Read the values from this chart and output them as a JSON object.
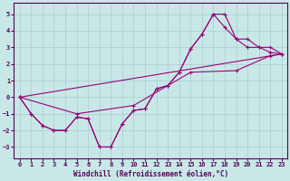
{
  "xlabel": "Windchill (Refroidissement éolien,°C)",
  "background_color": "#c8e8e8",
  "line_color": "#990077",
  "grid_color": "#aacccc",
  "spine_color": "#550055",
  "xlim": [
    -0.5,
    23.5
  ],
  "ylim": [
    -3.7,
    5.7
  ],
  "yticks": [
    -3,
    -2,
    -1,
    0,
    1,
    2,
    3,
    4,
    5
  ],
  "xticks": [
    0,
    1,
    2,
    3,
    4,
    5,
    6,
    7,
    8,
    9,
    10,
    11,
    12,
    13,
    14,
    15,
    16,
    17,
    18,
    19,
    20,
    21,
    22,
    23
  ],
  "line1_x": [
    0,
    1,
    2,
    3,
    4,
    5,
    6,
    7,
    8,
    9,
    10,
    11,
    12,
    13,
    14,
    15,
    16,
    17,
    18,
    19,
    20,
    21,
    22,
    23
  ],
  "line1_y": [
    0.0,
    -1.0,
    -1.7,
    -2.0,
    -2.0,
    -1.2,
    -1.3,
    -3.0,
    -3.0,
    -1.6,
    -0.8,
    -0.7,
    0.5,
    0.7,
    1.5,
    2.9,
    3.8,
    5.0,
    5.0,
    3.5,
    3.0,
    3.0,
    2.7,
    2.6
  ],
  "line2_x": [
    0,
    1,
    2,
    3,
    4,
    5,
    6,
    7,
    8,
    9,
    10,
    11,
    12,
    13,
    14,
    15,
    16,
    17,
    18,
    19,
    20,
    21,
    22,
    23
  ],
  "line2_y": [
    0.0,
    -1.0,
    -1.7,
    -2.0,
    -2.0,
    -1.2,
    -1.3,
    -3.0,
    -3.0,
    -1.6,
    -0.8,
    -0.7,
    0.5,
    0.7,
    1.5,
    2.9,
    3.8,
    5.0,
    4.2,
    3.5,
    3.5,
    3.0,
    3.0,
    2.6
  ],
  "line3_x": [
    0,
    23
  ],
  "line3_y": [
    0.0,
    2.6
  ],
  "line4_x": [
    0,
    5,
    10,
    15,
    19,
    22,
    23
  ],
  "line4_y": [
    0.0,
    -1.0,
    -0.5,
    1.5,
    1.6,
    2.5,
    2.6
  ],
  "xlabel_fontsize": 5.5,
  "tick_labelsize": 5.0
}
